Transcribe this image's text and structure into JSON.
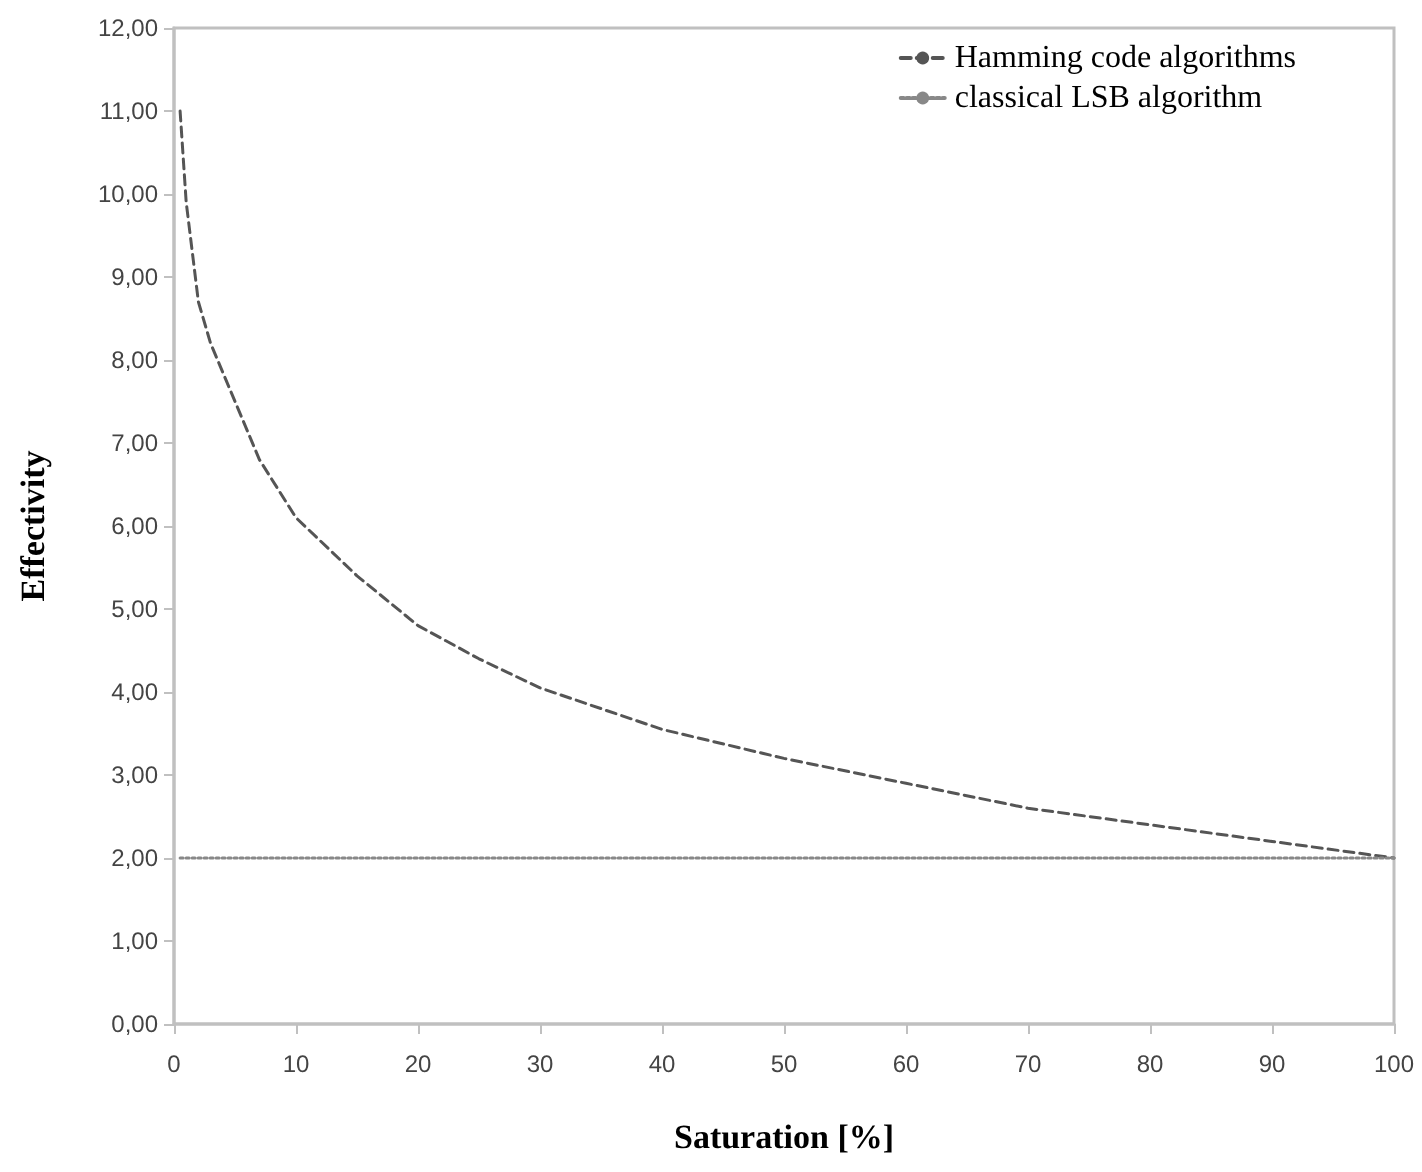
{
  "chart_data": {
    "type": "line",
    "xlabel": "Saturation [%]",
    "ylabel": "Effectivity",
    "series": [
      {
        "name": "Hamming code algorithms",
        "color": "#555555",
        "line_style": "dashed",
        "x": [
          0.5,
          1,
          2,
          3,
          5,
          7,
          10,
          15,
          20,
          25,
          30,
          40,
          50,
          60,
          70,
          80,
          90,
          100
        ],
        "values": [
          11.0,
          9.9,
          8.7,
          8.2,
          7.5,
          6.8,
          6.1,
          5.4,
          4.8,
          4.4,
          4.05,
          3.55,
          3.2,
          2.9,
          2.6,
          2.4,
          2.2,
          2.0
        ]
      },
      {
        "name": "classical LSB algorithm",
        "color": "#888888",
        "line_style": "dotted",
        "x": [
          0.5,
          100
        ],
        "values": [
          2.0,
          2.0
        ]
      }
    ],
    "xlim": [
      0,
      100
    ],
    "xticks": [
      0,
      10,
      20,
      30,
      40,
      50,
      60,
      70,
      80,
      90,
      100
    ],
    "ylim": [
      0,
      12
    ],
    "yticks": [
      {
        "value": 0,
        "label": "0,00"
      },
      {
        "value": 1,
        "label": "1,00"
      },
      {
        "value": 2,
        "label": "2,00"
      },
      {
        "value": 3,
        "label": "3,00"
      },
      {
        "value": 4,
        "label": "4,00"
      },
      {
        "value": 5,
        "label": "5,00"
      },
      {
        "value": 6,
        "label": "6,00"
      },
      {
        "value": 7,
        "label": "7,00"
      },
      {
        "value": 8,
        "label": "8,00"
      },
      {
        "value": 9,
        "label": "9,00"
      },
      {
        "value": 10,
        "label": "10,00"
      },
      {
        "value": 11,
        "label": "11,00"
      },
      {
        "value": 12,
        "label": "12,00"
      }
    ],
    "grid": false,
    "legend": "top right",
    "marker": "none"
  }
}
